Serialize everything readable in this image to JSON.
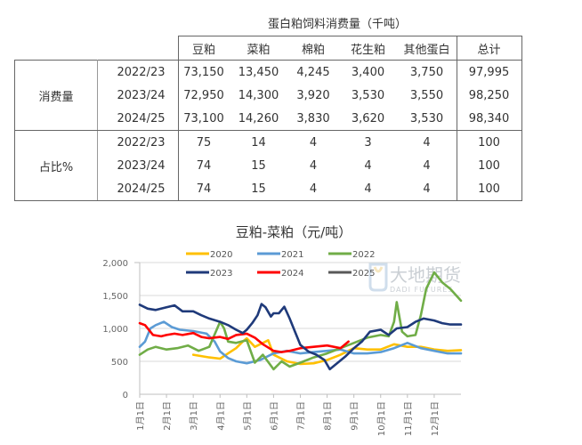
{
  "table": {
    "title": "蛋白粕饲料消费量（千吨）",
    "columns": [
      "豆粕",
      "菜粕",
      "棉粕",
      "花生粕",
      "其他蛋白",
      "总计"
    ],
    "sections": [
      {
        "label": "消费量",
        "rows": [
          {
            "year": "2022/23",
            "values": [
              "73,150",
              "13,450",
              "4,245",
              "3,400",
              "3,750",
              "97,995"
            ]
          },
          {
            "year": "2023/24",
            "values": [
              "72,950",
              "14,300",
              "3,920",
              "3,530",
              "3,550",
              "98,250"
            ]
          },
          {
            "year": "2024/25",
            "values": [
              "73,100",
              "14,260",
              "3,830",
              "3,620",
              "3,530",
              "98,340"
            ]
          }
        ]
      },
      {
        "label": "占比%",
        "rows": [
          {
            "year": "2022/23",
            "values": [
              "75",
              "14",
              "4",
              "3",
              "4",
              "100"
            ]
          },
          {
            "year": "2023/24",
            "values": [
              "74",
              "15",
              "4",
              "4",
              "4",
              "100"
            ]
          },
          {
            "year": "2024/25",
            "values": [
              "74",
              "15",
              "4",
              "4",
              "4",
              "100"
            ]
          }
        ]
      }
    ]
  },
  "watermark": {
    "cn": "大地期货",
    "en": "DADI FUTURES"
  },
  "chart_data": {
    "type": "line",
    "title": "豆粕-菜粕（元/吨）",
    "xlabel": "",
    "ylabel": "",
    "ylim": [
      0,
      2000
    ],
    "yticks": [
      "0",
      "500",
      "1,000",
      "1,500",
      "2,000"
    ],
    "yticks_values": [
      0,
      500,
      1000,
      1500,
      2000
    ],
    "xticks": [
      "1月1日",
      "2月1日",
      "3月1日",
      "4月1日",
      "5月1日",
      "6月1日",
      "7月1日",
      "8月1日",
      "9月1日",
      "10月1日",
      "11月1日",
      "12月1日"
    ],
    "grid": "horizontal",
    "legend_position": "top",
    "x_unit": "month offset from Jan 1 (0-12)",
    "series": [
      {
        "name": "2020",
        "color": "#FFC000",
        "x": [
          2.0,
          2.3,
          2.6,
          3.0,
          3.3,
          3.6,
          3.85,
          4.0,
          4.3,
          4.6,
          4.8,
          5.0,
          5.5,
          6.0,
          6.5,
          7.0,
          7.5,
          8.0,
          8.5,
          9.0,
          9.5,
          10.0,
          10.5,
          11.0,
          11.5,
          12.0
        ],
        "y": [
          600,
          580,
          560,
          540,
          620,
          700,
          800,
          850,
          720,
          780,
          820,
          600,
          500,
          460,
          470,
          520,
          600,
          700,
          680,
          680,
          760,
          720,
          720,
          680,
          660,
          670
        ]
      },
      {
        "name": "2021",
        "color": "#5B9BD5",
        "x": [
          0.0,
          0.2,
          0.4,
          0.6,
          0.9,
          1.2,
          1.5,
          2.0,
          2.5,
          2.8,
          3.0,
          3.3,
          3.6,
          4.0,
          4.5,
          5.0,
          5.5,
          6.0,
          6.5,
          7.0,
          7.5,
          8.0,
          8.5,
          9.0,
          9.5,
          10.0,
          10.5,
          11.0,
          11.5,
          12.0
        ],
        "y": [
          720,
          800,
          1000,
          1050,
          1100,
          1020,
          980,
          960,
          920,
          800,
          650,
          550,
          500,
          470,
          520,
          620,
          660,
          620,
          640,
          660,
          680,
          620,
          620,
          640,
          700,
          780,
          700,
          660,
          620,
          620
        ]
      },
      {
        "name": "2022",
        "color": "#70AD47",
        "x": [
          0.0,
          0.3,
          0.6,
          1.0,
          1.4,
          1.8,
          2.2,
          2.6,
          3.0,
          3.15,
          3.3,
          3.6,
          4.0,
          4.3,
          4.6,
          5.0,
          5.3,
          5.6,
          6.0,
          6.5,
          7.0,
          7.5,
          8.0,
          8.5,
          9.0,
          9.3,
          9.5,
          9.6,
          9.8,
          10.0,
          10.3,
          10.5,
          10.7,
          11.0,
          11.3,
          11.6,
          12.0
        ],
        "y": [
          600,
          680,
          720,
          680,
          700,
          740,
          660,
          720,
          1100,
          1000,
          800,
          780,
          820,
          480,
          600,
          380,
          500,
          420,
          480,
          560,
          620,
          700,
          780,
          860,
          900,
          880,
          1100,
          1400,
          950,
          880,
          900,
          1200,
          1600,
          1850,
          1700,
          1600,
          1420
        ]
      },
      {
        "name": "2023",
        "color": "#1F3A7A",
        "x": [
          0.0,
          0.3,
          0.6,
          1.0,
          1.3,
          1.6,
          2.0,
          2.3,
          2.6,
          3.0,
          3.3,
          3.6,
          3.85,
          4.0,
          4.2,
          4.4,
          4.55,
          4.7,
          4.9,
          5.0,
          5.2,
          5.4,
          5.6,
          5.8,
          6.0,
          6.3,
          6.6,
          6.9,
          7.1,
          7.4,
          7.7,
          8.0,
          8.3,
          8.6,
          9.0,
          9.3,
          9.6,
          10.0,
          10.3,
          10.6,
          11.0,
          11.3,
          11.6,
          12.0
        ],
        "y": [
          1360,
          1300,
          1280,
          1320,
          1350,
          1260,
          1260,
          1200,
          1150,
          1100,
          1050,
          980,
          930,
          980,
          1080,
          1200,
          1370,
          1320,
          1180,
          1230,
          1230,
          1330,
          1150,
          950,
          750,
          650,
          600,
          520,
          380,
          480,
          580,
          700,
          800,
          950,
          980,
          900,
          1000,
          1020,
          1100,
          1150,
          1120,
          1080,
          1060,
          1060
        ]
      },
      {
        "name": "2024",
        "color": "#FF0000",
        "x": [
          0.0,
          0.2,
          0.5,
          0.8,
          1.0,
          1.3,
          1.6,
          2.0,
          2.3,
          2.6,
          3.0,
          3.3,
          3.6,
          4.0,
          4.3,
          4.6,
          5.0,
          5.3,
          5.6,
          6.0,
          6.5,
          7.0,
          7.5,
          7.8
        ],
        "y": [
          1080,
          1050,
          900,
          880,
          900,
          920,
          900,
          930,
          870,
          850,
          870,
          840,
          900,
          920,
          860,
          760,
          660,
          640,
          660,
          700,
          720,
          740,
          700,
          800
        ]
      },
      {
        "name": "2025",
        "color": "#595959",
        "x": [],
        "y": []
      }
    ]
  }
}
